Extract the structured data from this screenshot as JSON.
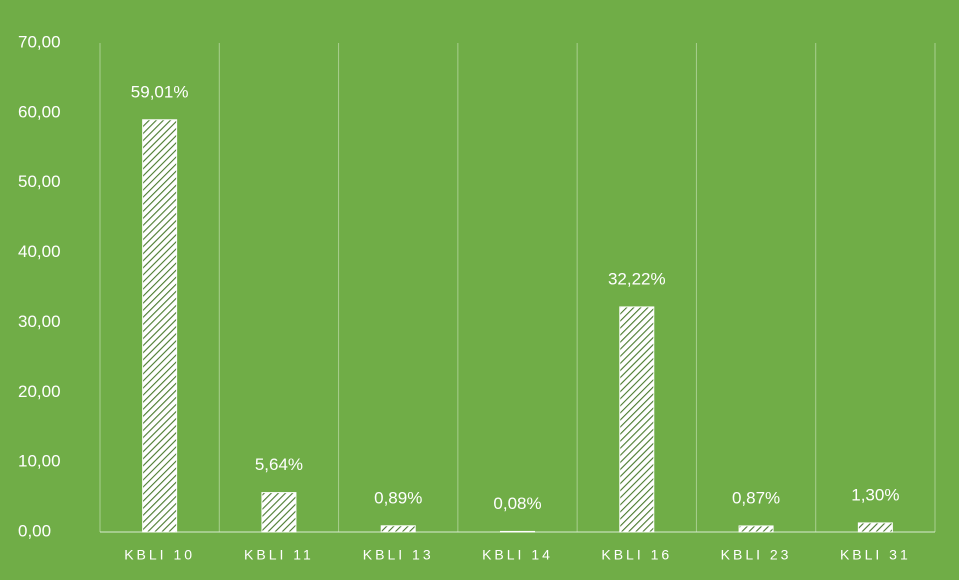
{
  "chart_data": {
    "type": "bar",
    "categories": [
      "KBLI 10",
      "KBLI 11",
      "KBLI 13",
      "KBLI 14",
      "KBLI 16",
      "KBLI 23",
      "KBLI 31"
    ],
    "values": [
      59.01,
      5.64,
      0.89,
      0.08,
      32.22,
      0.87,
      1.3
    ],
    "value_labels": [
      "59,01%",
      "5,64%",
      "0,89%",
      "0,08%",
      "32,22%",
      "0,87%",
      "1,30%"
    ],
    "color": "#ffffff",
    "ylim": [
      0,
      70
    ],
    "yticks": [
      {
        "value": 0,
        "label": "0,00"
      },
      {
        "value": 10,
        "label": "10,00"
      },
      {
        "value": 20,
        "label": "20,00"
      },
      {
        "value": 30,
        "label": "30,00"
      },
      {
        "value": 40,
        "label": "40,00"
      },
      {
        "value": 50,
        "label": "50,00"
      },
      {
        "value": 60,
        "label": "60,00"
      },
      {
        "value": 70,
        "label": "70,00"
      }
    ],
    "grid": true
  }
}
